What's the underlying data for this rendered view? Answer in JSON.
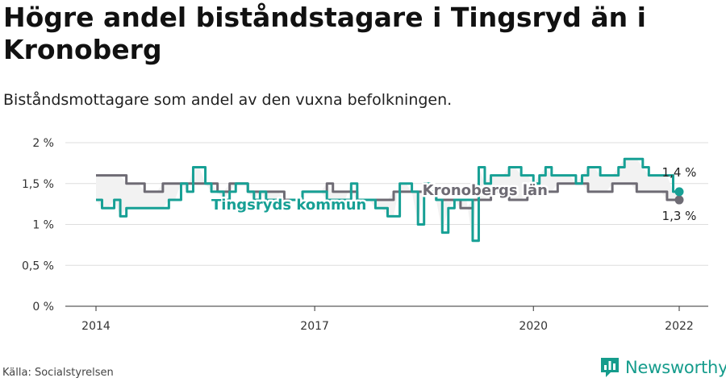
{
  "header": {
    "title": "Högre andel biståndstagare i Tingsryd än i Kronoberg",
    "subtitle": "Biståndsmottagare som andel av den vuxna befolkningen."
  },
  "footer": {
    "source": "Källa: Socialstyrelsen",
    "brand": "Newsworthy"
  },
  "colors": {
    "tingsryd": "#17a095",
    "kronoberg": "#6e6b74",
    "grid": "#dddddd",
    "band": "#f2f2f2",
    "brand": "#159c8c"
  },
  "chart_data": {
    "type": "line",
    "ylim": [
      0,
      2
    ],
    "yticks": [
      0,
      0.5,
      1,
      1.5,
      2
    ],
    "ytick_labels": [
      "0 %",
      "0,5 %",
      "1 %",
      "1,5 %",
      "2 %"
    ],
    "xlim": [
      2014,
      2022.3
    ],
    "xticks": [
      2014,
      2017,
      2020,
      2022
    ],
    "xtick_labels": [
      "2014",
      "2017",
      "2020",
      "2022"
    ],
    "series": [
      {
        "name": "Kronobergs län",
        "color": "#6e6b74",
        "end_label": "1,3 %",
        "x": [
          2014.0,
          2014.083,
          2014.167,
          2014.25,
          2014.333,
          2014.417,
          2014.5,
          2014.583,
          2014.667,
          2014.75,
          2014.833,
          2014.917,
          2015.0,
          2015.083,
          2015.167,
          2015.25,
          2015.333,
          2015.417,
          2015.5,
          2015.583,
          2015.667,
          2015.75,
          2015.833,
          2015.917,
          2016.0,
          2016.083,
          2016.167,
          2016.25,
          2016.333,
          2016.417,
          2016.5,
          2016.583,
          2016.667,
          2016.75,
          2016.833,
          2016.917,
          2017.0,
          2017.083,
          2017.167,
          2017.25,
          2017.333,
          2017.417,
          2017.5,
          2017.583,
          2017.667,
          2017.75,
          2017.833,
          2017.917,
          2018.0,
          2018.083,
          2018.167,
          2018.25,
          2018.333,
          2018.417,
          2018.5,
          2018.583,
          2018.667,
          2018.75,
          2018.833,
          2018.917,
          2019.0,
          2019.083,
          2019.167,
          2019.25,
          2019.333,
          2019.417,
          2019.5,
          2019.583,
          2019.667,
          2019.75,
          2019.833,
          2019.917,
          2020.0,
          2020.083,
          2020.167,
          2020.25,
          2020.333,
          2020.417,
          2020.5,
          2020.583,
          2020.667,
          2020.75,
          2020.833,
          2020.917,
          2021.0,
          2021.083,
          2021.167,
          2021.25,
          2021.333,
          2021.417,
          2021.5,
          2021.583,
          2021.667,
          2021.75,
          2021.833,
          2021.917,
          2022.0
        ],
        "values": [
          1.6,
          1.6,
          1.6,
          1.6,
          1.6,
          1.5,
          1.5,
          1.5,
          1.4,
          1.4,
          1.4,
          1.5,
          1.5,
          1.5,
          1.5,
          1.5,
          1.5,
          1.5,
          1.5,
          1.5,
          1.4,
          1.4,
          1.5,
          1.5,
          1.5,
          1.4,
          1.4,
          1.4,
          1.4,
          1.4,
          1.4,
          1.3,
          1.3,
          1.3,
          1.4,
          1.4,
          1.4,
          1.4,
          1.5,
          1.4,
          1.4,
          1.4,
          1.4,
          1.3,
          1.3,
          1.3,
          1.3,
          1.3,
          1.3,
          1.4,
          1.4,
          1.4,
          1.4,
          1.4,
          1.4,
          1.4,
          1.3,
          1.3,
          1.3,
          1.3,
          1.2,
          1.2,
          1.3,
          1.3,
          1.3,
          1.4,
          1.4,
          1.4,
          1.3,
          1.3,
          1.3,
          1.4,
          1.4,
          1.4,
          1.4,
          1.4,
          1.5,
          1.5,
          1.5,
          1.5,
          1.5,
          1.4,
          1.4,
          1.4,
          1.4,
          1.5,
          1.5,
          1.5,
          1.5,
          1.4,
          1.4,
          1.4,
          1.4,
          1.4,
          1.3,
          1.3,
          1.3
        ]
      },
      {
        "name": "Tingsryds kommun",
        "color": "#17a095",
        "end_label": "1,4 %",
        "x": [
          2014.0,
          2014.083,
          2014.167,
          2014.25,
          2014.333,
          2014.417,
          2014.5,
          2014.583,
          2014.667,
          2014.75,
          2014.833,
          2014.917,
          2015.0,
          2015.083,
          2015.167,
          2015.25,
          2015.333,
          2015.417,
          2015.5,
          2015.583,
          2015.667,
          2015.75,
          2015.833,
          2015.917,
          2016.0,
          2016.083,
          2016.167,
          2016.25,
          2016.333,
          2016.417,
          2016.5,
          2016.583,
          2016.667,
          2016.75,
          2016.833,
          2016.917,
          2017.0,
          2017.083,
          2017.167,
          2017.25,
          2017.333,
          2017.417,
          2017.5,
          2017.583,
          2017.667,
          2017.75,
          2017.833,
          2017.917,
          2018.0,
          2018.083,
          2018.167,
          2018.25,
          2018.333,
          2018.417,
          2018.5,
          2018.583,
          2018.667,
          2018.75,
          2018.833,
          2018.917,
          2019.0,
          2019.083,
          2019.167,
          2019.25,
          2019.333,
          2019.417,
          2019.5,
          2019.583,
          2019.667,
          2019.75,
          2019.833,
          2019.917,
          2020.0,
          2020.083,
          2020.167,
          2020.25,
          2020.333,
          2020.417,
          2020.5,
          2020.583,
          2020.667,
          2020.75,
          2020.833,
          2020.917,
          2021.0,
          2021.083,
          2021.167,
          2021.25,
          2021.333,
          2021.417,
          2021.5,
          2021.583,
          2021.667,
          2021.75,
          2021.833,
          2021.917,
          2022.0
        ],
        "values": [
          1.3,
          1.2,
          1.2,
          1.3,
          1.1,
          1.2,
          1.2,
          1.2,
          1.2,
          1.2,
          1.2,
          1.2,
          1.3,
          1.3,
          1.5,
          1.4,
          1.7,
          1.7,
          1.5,
          1.4,
          1.4,
          1.3,
          1.4,
          1.5,
          1.5,
          1.4,
          1.3,
          1.4,
          1.3,
          1.3,
          1.2,
          1.2,
          1.3,
          1.3,
          1.4,
          1.4,
          1.4,
          1.4,
          1.3,
          1.3,
          1.3,
          1.3,
          1.5,
          1.3,
          1.3,
          1.3,
          1.2,
          1.2,
          1.1,
          1.1,
          1.5,
          1.5,
          1.4,
          1.0,
          1.5,
          1.4,
          1.3,
          0.9,
          1.2,
          1.3,
          1.3,
          1.3,
          0.8,
          1.7,
          1.5,
          1.6,
          1.6,
          1.6,
          1.7,
          1.7,
          1.6,
          1.6,
          1.5,
          1.6,
          1.7,
          1.6,
          1.6,
          1.6,
          1.6,
          1.5,
          1.6,
          1.7,
          1.7,
          1.6,
          1.6,
          1.6,
          1.7,
          1.8,
          1.8,
          1.8,
          1.7,
          1.6,
          1.6,
          1.6,
          1.6,
          1.4,
          1.4
        ]
      }
    ],
    "annotations": [
      {
        "text": "Kronobergs län",
        "series": 0
      },
      {
        "text": "Tingsryds kommun",
        "series": 1
      }
    ]
  }
}
